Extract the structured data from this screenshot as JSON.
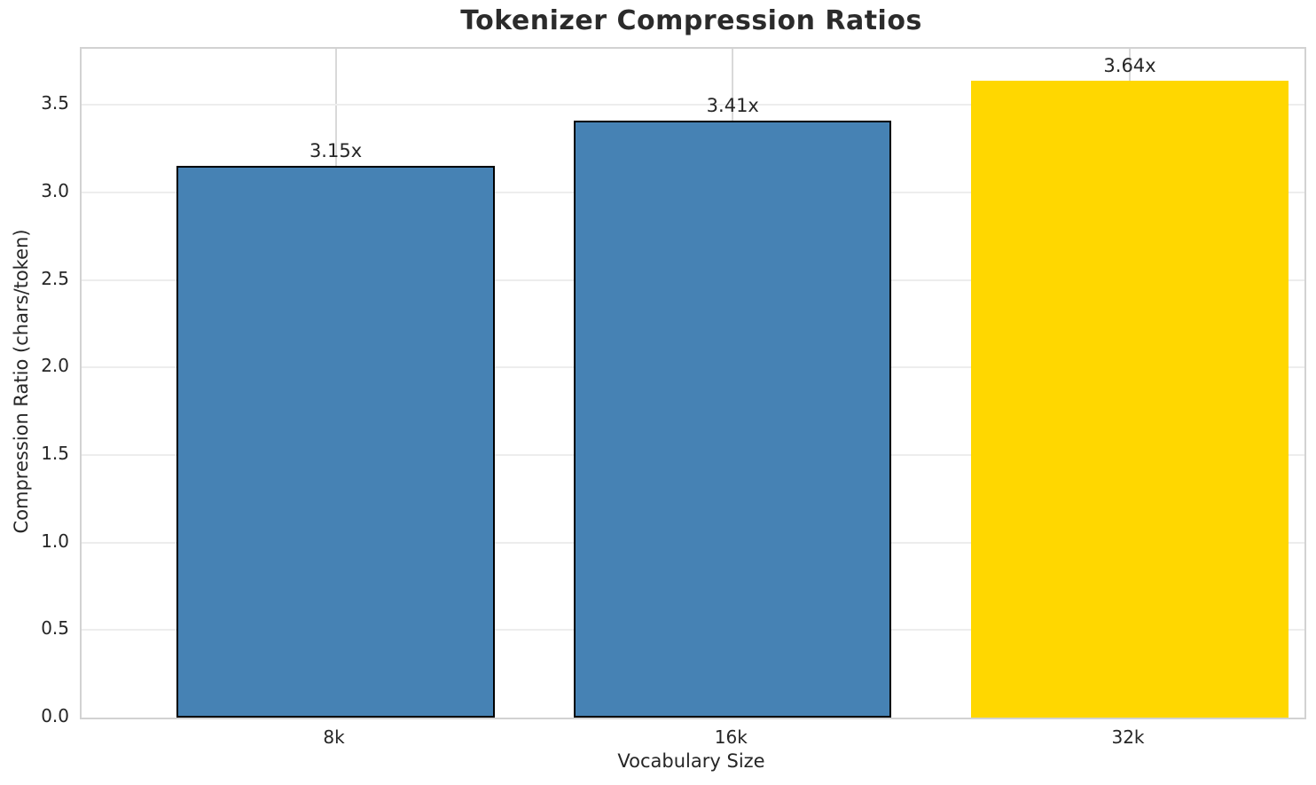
{
  "chart_data": {
    "type": "bar",
    "title": "Tokenizer Compression Ratios",
    "xlabel": "Vocabulary Size",
    "ylabel": "Compression Ratio (chars/token)",
    "categories": [
      "8k",
      "16k",
      "32k"
    ],
    "values": [
      3.15,
      3.41,
      3.64
    ],
    "bar_labels": [
      "3.15x",
      "3.41x",
      "3.64x"
    ],
    "ylim": [
      0,
      3.82
    ],
    "ytick_labels": [
      "0.0",
      "0.5",
      "1.0",
      "1.5",
      "2.0",
      "2.5",
      "3.0",
      "3.5"
    ],
    "grid": true,
    "legend": "none",
    "bar_width_fraction": 0.8,
    "bar_colors": [
      "#4682B4",
      "#4682B4",
      "#FFD700"
    ],
    "bar_edge_colors": [
      "#000000",
      "#000000",
      "none"
    ],
    "bar_edge_widths": [
      2.5,
      2.5,
      0
    ],
    "colors": {
      "steel_blue": "#4682B4",
      "highlight_gold": "#FFD700",
      "grid_horizontal": "#ededed",
      "grid_vertical": "#d9d9d9",
      "spine": "#d2d2d2",
      "text": "#262626",
      "title": "#2b2b2b",
      "background": "#ffffff"
    }
  }
}
